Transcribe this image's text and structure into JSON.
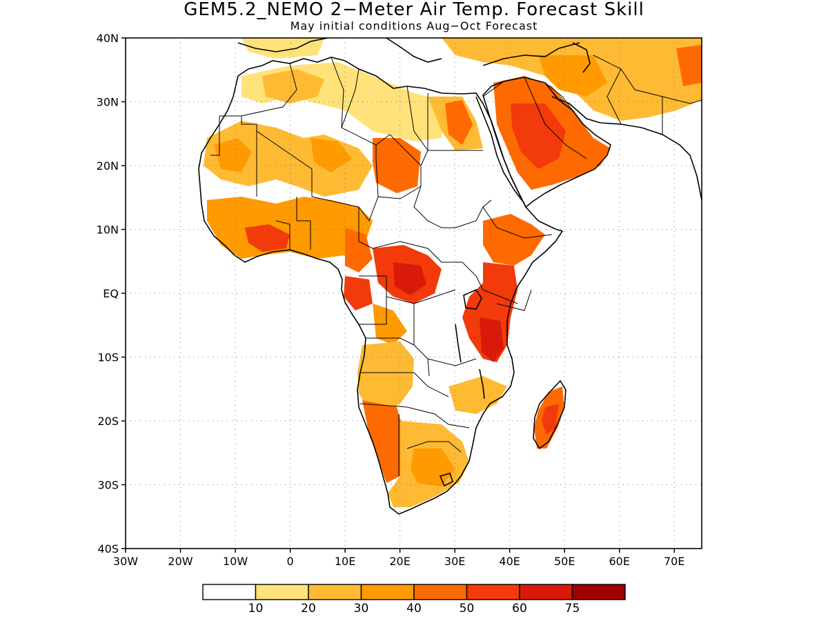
{
  "title": "GEM5.2_NEMO 2−Meter Air Temp. Forecast Skill",
  "subtitle": "May initial conditions  Aug−Oct Forecast",
  "map": {
    "lon_range": [
      -30,
      75
    ],
    "lat_range": [
      -40,
      40
    ],
    "y_tick_labels": [
      "40N",
      "30N",
      "20N",
      "10N",
      "EQ",
      "10S",
      "20S",
      "30S",
      "40S"
    ],
    "x_tick_labels": [
      "30W",
      "20W",
      "10W",
      "0",
      "10E",
      "20E",
      "30E",
      "40E",
      "50E",
      "60E",
      "70E"
    ],
    "grid": "dotted",
    "region": "Africa and Arabian Peninsula"
  },
  "colorbar": {
    "placement": "bottom",
    "thresholds": [
      "10",
      "20",
      "30",
      "40",
      "50",
      "60",
      "75"
    ],
    "colors": [
      "#ffffff",
      "#ffe27a",
      "#ffba33",
      "#ff9a00",
      "#ff6a00",
      "#f23a0a",
      "#d91a0a",
      "#a00000"
    ]
  },
  "skill_regions": [
    {
      "name": "sahara-north",
      "level": 2,
      "color": "#ffba33"
    },
    {
      "name": "west-africa",
      "level": 3,
      "color": "#ff9a00"
    },
    {
      "name": "central-africa",
      "level": 6,
      "color": "#d91a0a"
    },
    {
      "name": "east-africa",
      "level": 6,
      "color": "#d91a0a"
    },
    {
      "name": "arabia",
      "level": 5,
      "color": "#f23a0a"
    },
    {
      "name": "southern-africa",
      "level": 3,
      "color": "#ff9a00"
    },
    {
      "name": "madagascar",
      "level": 5,
      "color": "#f23a0a"
    }
  ]
}
